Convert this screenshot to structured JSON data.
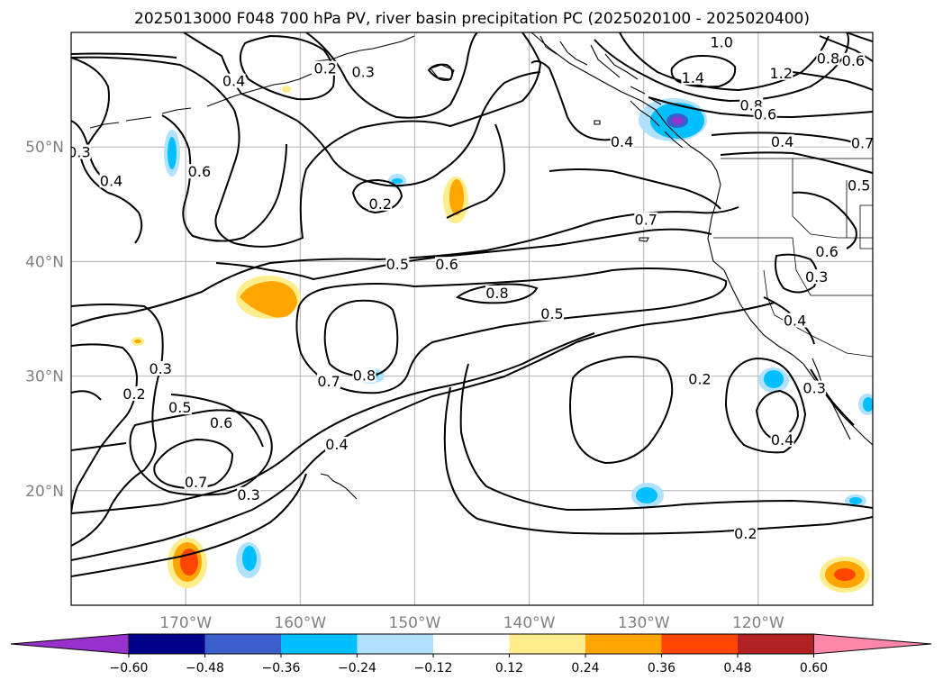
{
  "title": "2025013000 F048 700 hPa PV, river basin precipitation PC (2025020100 - 2025020400)",
  "map": {
    "lon_range": [
      -180,
      -110
    ],
    "lat_range": [
      10,
      60
    ],
    "lon_ticks": [
      -170,
      -160,
      -150,
      -140,
      -130,
      -120
    ],
    "lon_tick_labels": [
      "170°W",
      "160°W",
      "150°W",
      "140°W",
      "130°W",
      "120°W"
    ],
    "lat_ticks": [
      20,
      30,
      40,
      50
    ],
    "lat_tick_labels": [
      "20°N",
      "30°N",
      "40°N",
      "50°N"
    ],
    "contour_labels": [
      {
        "text": "0.3",
        "lon": -179.3,
        "lat": 49.5
      },
      {
        "text": "0.4",
        "lon": -176.5,
        "lat": 47.0
      },
      {
        "text": "0.6",
        "lon": -168.8,
        "lat": 47.8
      },
      {
        "text": "0.4",
        "lon": -165.8,
        "lat": 55.7
      },
      {
        "text": "0.2",
        "lon": -157.8,
        "lat": 56.8
      },
      {
        "text": "0.3",
        "lon": -154.5,
        "lat": 56.5
      },
      {
        "text": "0.2",
        "lon": -153.0,
        "lat": 45.0
      },
      {
        "text": "0.5",
        "lon": -151.5,
        "lat": 39.7
      },
      {
        "text": "0.6",
        "lon": -147.2,
        "lat": 39.7
      },
      {
        "text": "0.8",
        "lon": -142.8,
        "lat": 37.2
      },
      {
        "text": "0.5",
        "lon": -138.0,
        "lat": 35.4
      },
      {
        "text": "0.7",
        "lon": -157.5,
        "lat": 29.5
      },
      {
        "text": "0.8",
        "lon": -154.4,
        "lat": 30.0
      },
      {
        "text": "0.3",
        "lon": -172.2,
        "lat": 30.6
      },
      {
        "text": "0.2",
        "lon": -174.5,
        "lat": 28.4
      },
      {
        "text": "0.5",
        "lon": -170.5,
        "lat": 27.2
      },
      {
        "text": "0.6",
        "lon": -166.9,
        "lat": 25.9
      },
      {
        "text": "0.7",
        "lon": -169.1,
        "lat": 20.7
      },
      {
        "text": "0.3",
        "lon": -164.5,
        "lat": 19.6
      },
      {
        "text": "0.4",
        "lon": -156.8,
        "lat": 24.0
      },
      {
        "text": "0.2",
        "lon": -125.1,
        "lat": 29.7
      },
      {
        "text": "0.4",
        "lon": -117.9,
        "lat": 24.4
      },
      {
        "text": "0.2",
        "lon": -121.1,
        "lat": 16.2
      },
      {
        "text": "0.4",
        "lon": -131.9,
        "lat": 50.4
      },
      {
        "text": "0.7",
        "lon": -129.8,
        "lat": 43.6
      },
      {
        "text": "1.0",
        "lon": -123.2,
        "lat": 59.1
      },
      {
        "text": "1.4",
        "lon": -125.7,
        "lat": 56.0
      },
      {
        "text": "1.2",
        "lon": -118.0,
        "lat": 56.4
      },
      {
        "text": "0.8",
        "lon": -120.6,
        "lat": 53.6
      },
      {
        "text": "0.6",
        "lon": -119.4,
        "lat": 52.8
      },
      {
        "text": "0.4",
        "lon": -117.9,
        "lat": 50.4
      },
      {
        "text": "0.8",
        "lon": -113.9,
        "lat": 57.7
      },
      {
        "text": "0.6",
        "lon": -111.7,
        "lat": 57.5
      },
      {
        "text": "0.7",
        "lon": -110.9,
        "lat": 50.3
      },
      {
        "text": "0.5",
        "lon": -111.2,
        "lat": 46.6
      },
      {
        "text": "0.6",
        "lon": -114.0,
        "lat": 40.8
      },
      {
        "text": "0.3",
        "lon": -114.9,
        "lat": 38.6
      },
      {
        "text": "0.4",
        "lon": -116.8,
        "lat": 34.8
      },
      {
        "text": "0.3",
        "lon": -115.1,
        "lat": 28.9
      }
    ]
  },
  "colorbar": {
    "colors": [
      "#9932cc",
      "#00008b",
      "#3a5fcd",
      "#00bfff",
      "#b0e2ff",
      "#ffffff",
      "#ffec8b",
      "#ffa500",
      "#ff4500",
      "#b22222",
      "#ff88aa"
    ],
    "tick_labels": [
      "−0.60",
      "−0.48",
      "−0.36",
      "−0.24",
      "−0.12",
      "0.12",
      "0.24",
      "0.36",
      "0.48",
      "0.60"
    ]
  }
}
